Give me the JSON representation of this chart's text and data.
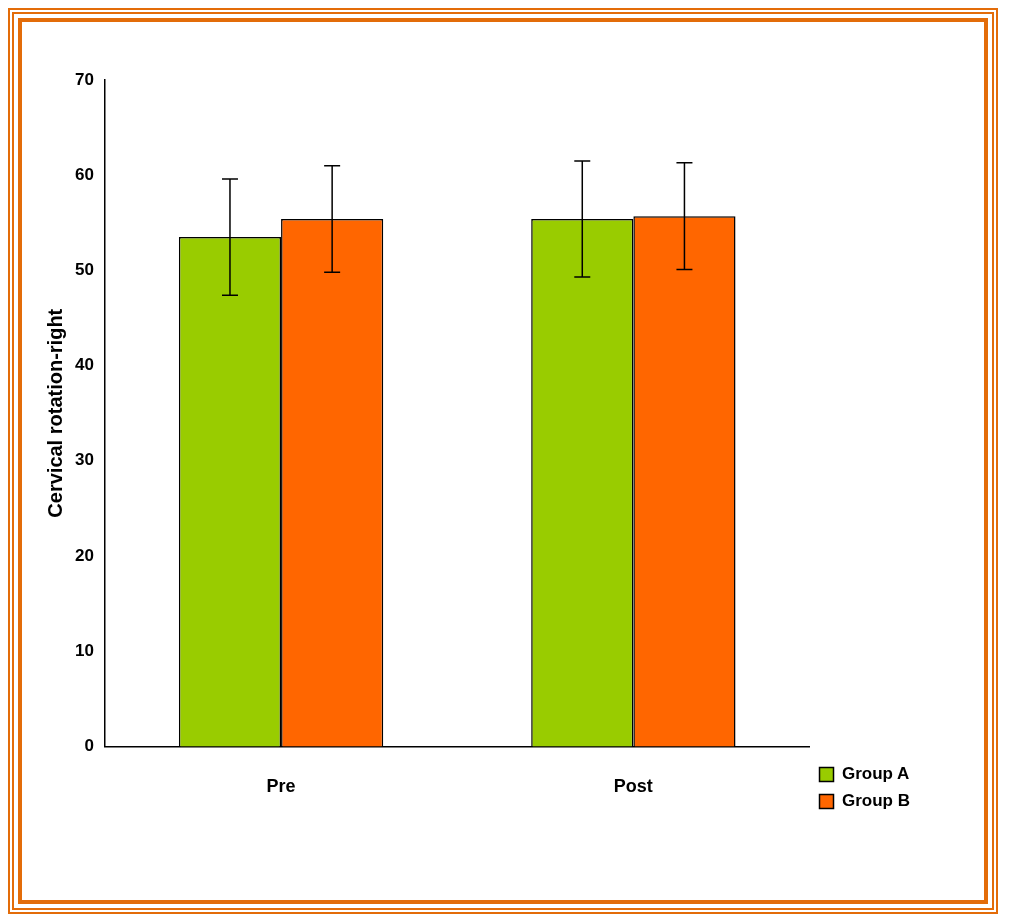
{
  "chart_data": {
    "type": "bar",
    "ylabel": "Cervical rotation-right",
    "categories": [
      "Pre",
      "Post"
    ],
    "series": [
      {
        "name": "Group A",
        "color": "#99cc00",
        "values": [
          53.5,
          55.4
        ],
        "errors": [
          6.1,
          6.1
        ]
      },
      {
        "name": "Group B",
        "color": "#ff6600",
        "values": [
          55.4,
          55.7
        ],
        "errors": [
          5.6,
          5.6
        ]
      }
    ],
    "ylim": [
      0,
      70
    ],
    "yticks": [
      0,
      10,
      20,
      30,
      40,
      50,
      60,
      70
    ],
    "grid": false,
    "legend": "right"
  }
}
